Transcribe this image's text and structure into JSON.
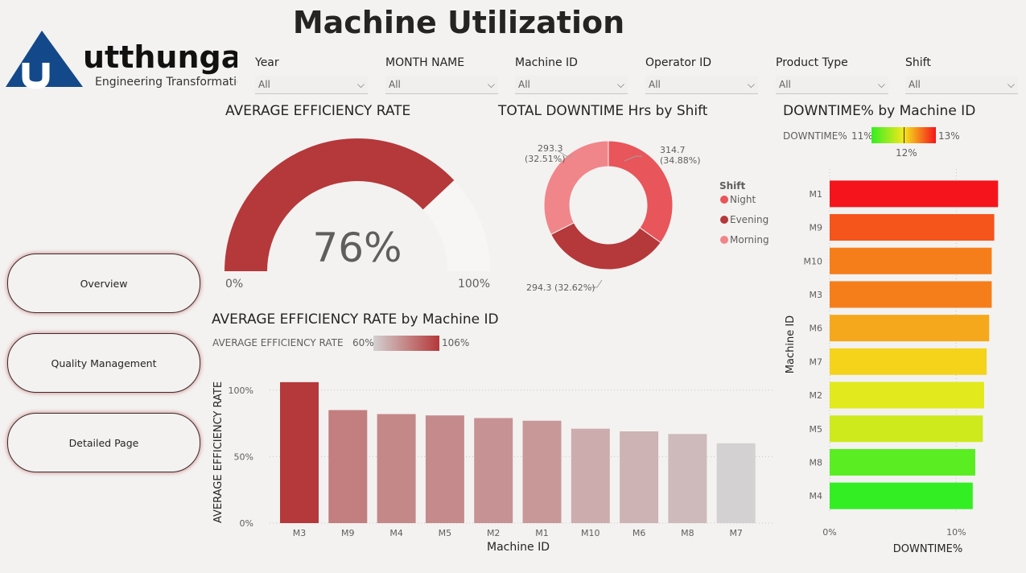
{
  "title": "Machine Utilization",
  "logo": {
    "name": "utthunga",
    "tagline": "Engineering Transformation",
    "color": "#13498a"
  },
  "slicers": [
    {
      "label": "Year",
      "value": "All"
    },
    {
      "label": "MONTH NAME",
      "value": "All"
    },
    {
      "label": "Machine ID",
      "value": "All"
    },
    {
      "label": "Operator ID",
      "value": "All"
    },
    {
      "label": "Product Type",
      "value": "All"
    },
    {
      "label": "Shift",
      "value": "All"
    }
  ],
  "nav": {
    "overview": "Overview",
    "quality": "Quality Management",
    "detailed": "Detailed Page"
  },
  "gauge": {
    "title": "AVERAGE EFFICIENCY RATE",
    "value_label": "76%",
    "min_label": "0%",
    "max_label": "100%",
    "value": 0.76,
    "color": "#b5383a"
  },
  "donut": {
    "title": "TOTAL DOWNTIME Hrs by Shift",
    "legend_title": "Shift",
    "labels": [
      "314.7\n(34.88%)",
      "294.3 (32.62%)",
      "293.3\n(32.51%)"
    ]
  },
  "downtime_bar": {
    "title": "DOWNTIME% by Machine ID",
    "legend_label": "DOWNTIME%",
    "legend_min": "11%",
    "legend_mid": "12%",
    "legend_max": "13%"
  },
  "eff_bar": {
    "title": "AVERAGE EFFICIENCY RATE by Machine ID",
    "legend_label": "AVERAGE EFFICIENCY RATE",
    "legend_min": "60%",
    "legend_max": "106%"
  },
  "chart_data": [
    {
      "type": "pie",
      "title": "TOTAL DOWNTIME Hrs by Shift",
      "categories": [
        "Night",
        "Evening",
        "Morning"
      ],
      "values": [
        314.7,
        294.3,
        293.3
      ],
      "percent": [
        34.88,
        32.62,
        32.51
      ],
      "colors": [
        "#e8555a",
        "#b5383a",
        "#f0868a"
      ],
      "legend_position": "right"
    },
    {
      "type": "bar",
      "title": "AVERAGE EFFICIENCY RATE by Machine ID",
      "xlabel": "Machine ID",
      "ylabel": "AVERAGE EFFICIENCY RATE",
      "categories": [
        "M3",
        "M9",
        "M4",
        "M5",
        "M2",
        "M1",
        "M10",
        "M6",
        "M8",
        "M7"
      ],
      "values": [
        106,
        85,
        82,
        81,
        79,
        77,
        71,
        69,
        67,
        60
      ],
      "ylim": [
        0,
        115
      ],
      "yticks": [
        "0%",
        "50%",
        "100%"
      ],
      "ytick_values": [
        0,
        50,
        100
      ],
      "grid": true
    },
    {
      "type": "bar",
      "orientation": "horizontal",
      "title": "DOWNTIME% by Machine ID",
      "xlabel": "DOWNTIME%",
      "ylabel": "Machine ID",
      "categories": [
        "M1",
        "M9",
        "M10",
        "M3",
        "M6",
        "M7",
        "M2",
        "M5",
        "M8",
        "M4"
      ],
      "values": [
        13.3,
        13.0,
        12.8,
        12.8,
        12.6,
        12.4,
        12.2,
        12.1,
        11.5,
        11.3
      ],
      "xlim": [
        0,
        13.6
      ],
      "xticks": [
        "0%",
        "10%"
      ],
      "xtick_values": [
        0,
        10
      ],
      "grid": true
    }
  ]
}
